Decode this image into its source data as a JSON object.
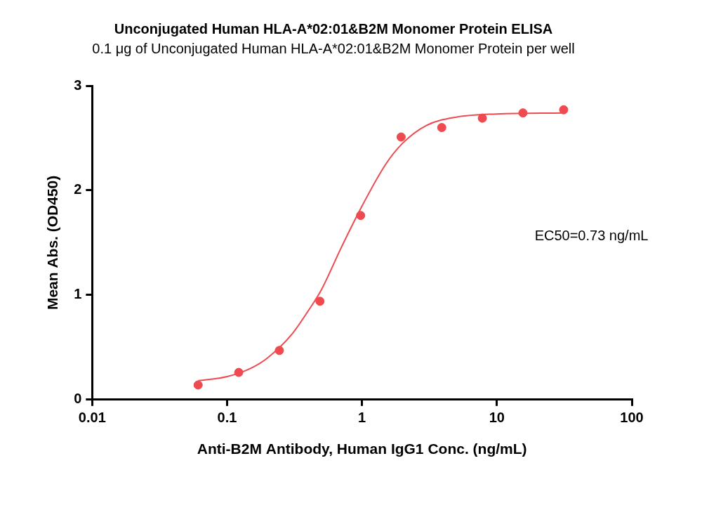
{
  "chart_data": {
    "type": "scatter",
    "title": "Unconjugated Human HLA-A*02:01&B2M Monomer Protein ELISA",
    "subtitle": "0.1 μg of Unconjugated Human HLA-A*02:01&B2M Monomer Protein per well",
    "x_label": "Anti-B2M Antibody, Human IgG1 Conc. (ng/mL)",
    "y_label": "Mean Abs. (OD450)",
    "annotation": "EC50=0.73 ng/mL",
    "log": "x",
    "grid": false,
    "xlim": [
      0.01,
      100
    ],
    "xticks": [
      0.01,
      0.1,
      1,
      10,
      100
    ],
    "ylim": [
      0,
      3
    ],
    "yticks": [
      0,
      1,
      2,
      3
    ],
    "series": [
      {
        "type": "scatter",
        "marker": "circle",
        "color": "#ee4a4f",
        "x": [
          0.061,
          0.122,
          0.244,
          0.488,
          0.977,
          1.95,
          3.9,
          7.8,
          15.6,
          31.25
        ],
        "values": [
          0.14,
          0.26,
          0.47,
          0.94,
          1.76,
          2.51,
          2.6,
          2.69,
          2.74,
          2.77
        ]
      },
      {
        "type": "line",
        "line_style": "solid",
        "color": "#ee4a4f",
        "x": [
          0.061,
          0.1,
          0.15,
          0.2,
          0.3,
          0.4,
          0.5,
          0.7,
          1,
          1.5,
          2,
          3,
          5,
          10,
          31.25
        ],
        "values": [
          0.18,
          0.22,
          0.3,
          0.4,
          0.62,
          0.85,
          1.05,
          1.45,
          1.85,
          2.25,
          2.45,
          2.62,
          2.7,
          2.73,
          2.74
        ]
      }
    ]
  }
}
